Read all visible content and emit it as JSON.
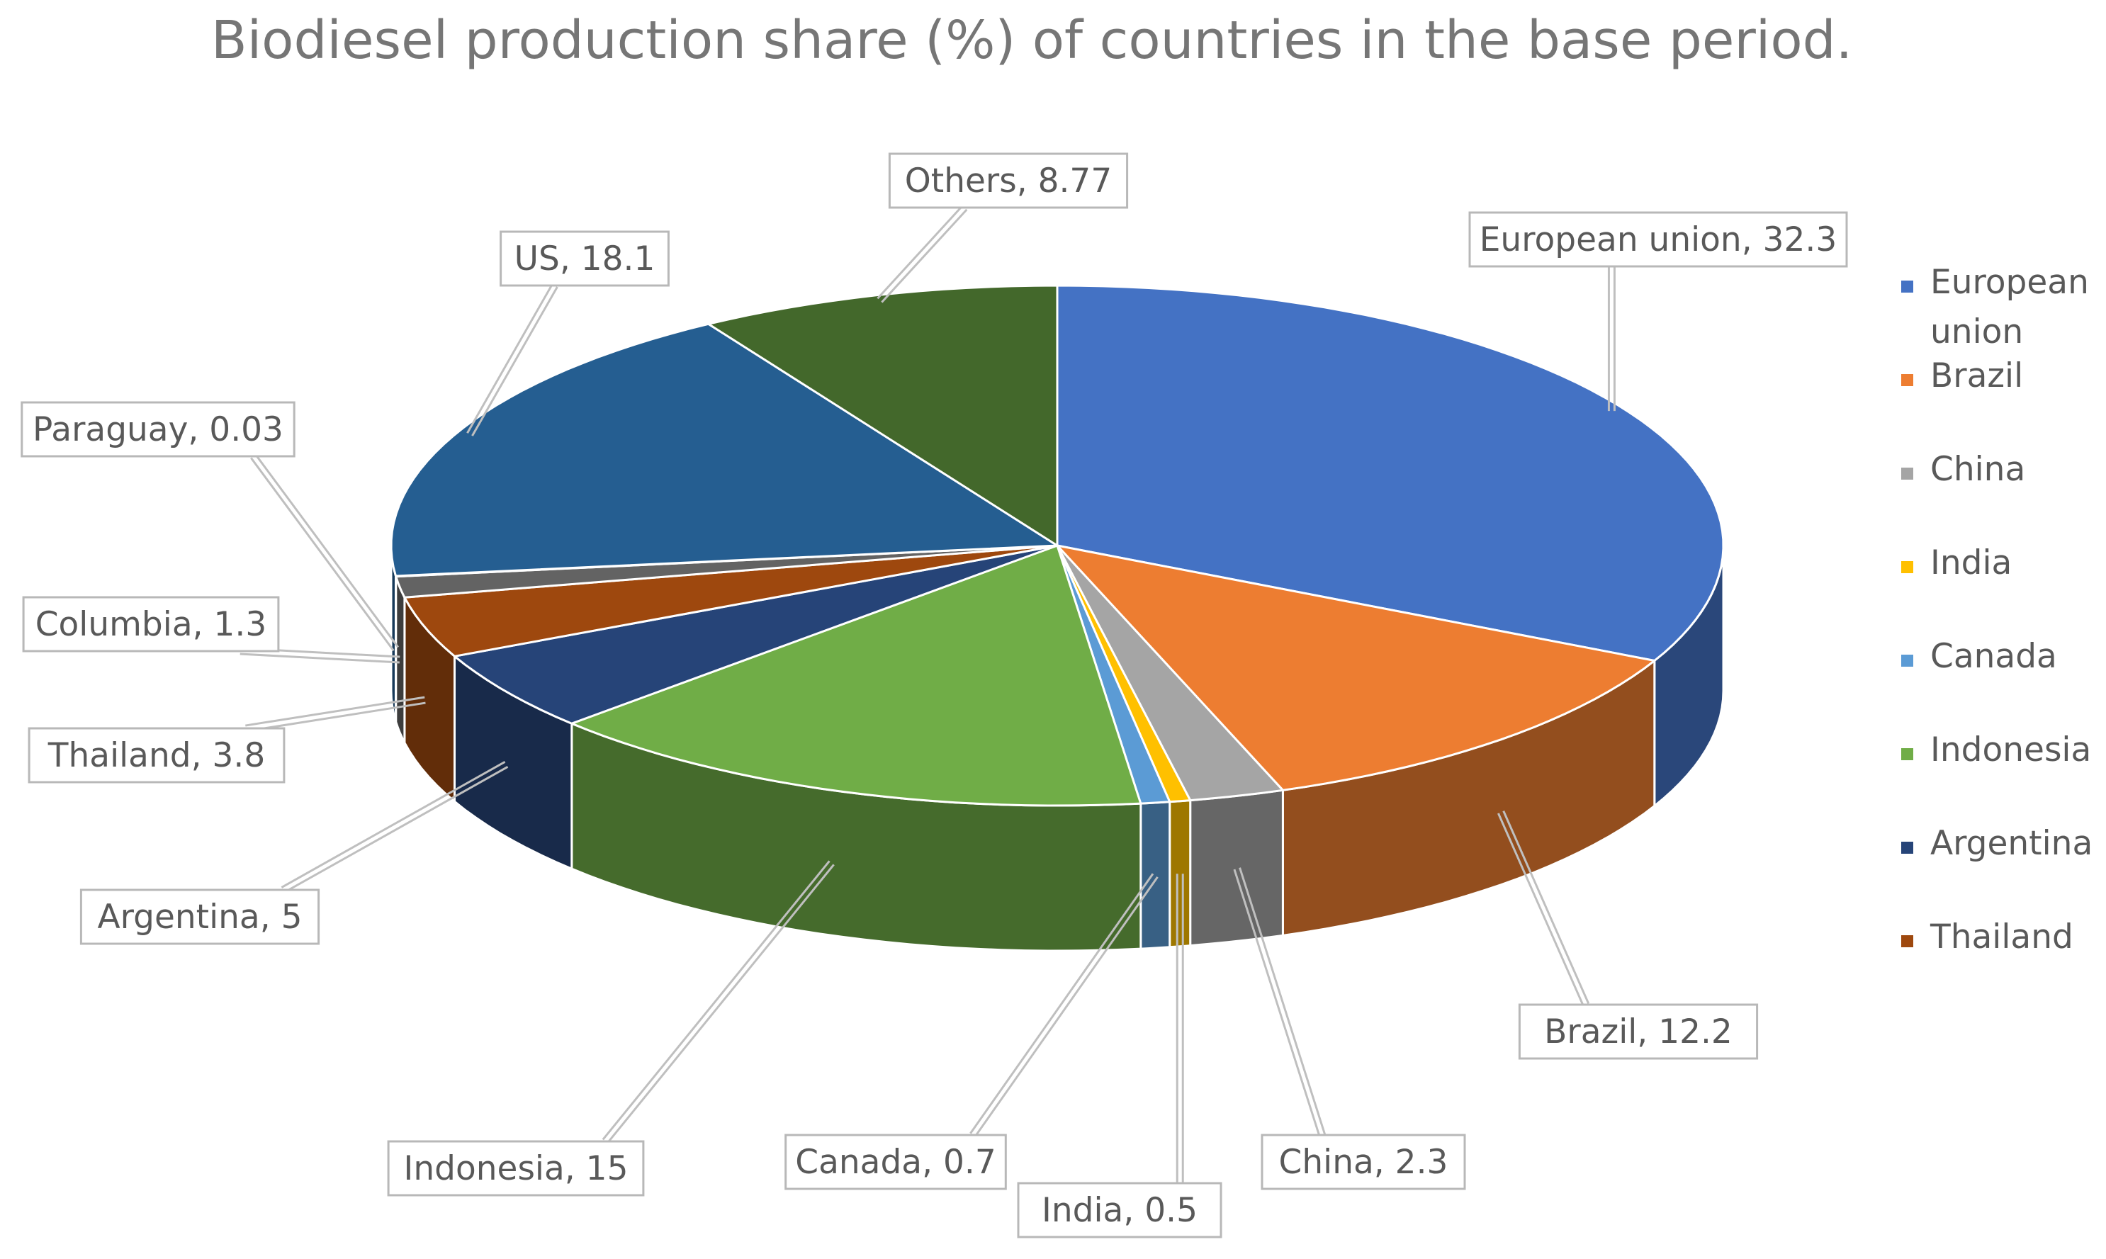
{
  "chart_data": {
    "type": "pie",
    "title": "Biodiesel production share (%) of countries in the base period.",
    "unit": "%",
    "slices": [
      {
        "label": "European union",
        "value": 32.3,
        "color": "#4472c4",
        "data_label": "European union, 32.3"
      },
      {
        "label": "Brazil",
        "value": 12.2,
        "color": "#ed7d31",
        "data_label": "Brazil, 12.2"
      },
      {
        "label": "China",
        "value": 2.3,
        "color": "#a5a5a5",
        "data_label": "China, 2.3"
      },
      {
        "label": "India",
        "value": 0.5,
        "color": "#ffc000",
        "data_label": "India, 0.5"
      },
      {
        "label": "Canada",
        "value": 0.7,
        "color": "#5b9bd5",
        "data_label": "Canada, 0.7"
      },
      {
        "label": "Indonesia",
        "value": 15,
        "color": "#70ad47",
        "data_label": "Indonesia, 15"
      },
      {
        "label": "Argentina",
        "value": 5,
        "color": "#264478",
        "data_label": "Argentina, 5"
      },
      {
        "label": "Thailand",
        "value": 3.8,
        "color": "#9e480e",
        "data_label": "Thailand, 3.8"
      },
      {
        "label": "Columbia",
        "value": 1.3,
        "color": "#636363",
        "data_label": "Columbia, 1.3"
      },
      {
        "label": "Paraguay",
        "value": 0.03,
        "color": "#997300",
        "data_label": "Paraguay, 0.03"
      },
      {
        "label": "US",
        "value": 18.1,
        "color": "#255e91",
        "data_label": "US, 18.1"
      },
      {
        "label": "Others",
        "value": 8.77,
        "color": "#43682b",
        "data_label": "Others, 8.77"
      }
    ],
    "legend": {
      "position": "right",
      "entries": [
        {
          "label": "European union",
          "color": "#4472c4"
        },
        {
          "label": "Brazil",
          "color": "#ed7d31"
        },
        {
          "label": "China",
          "color": "#a5a5a5"
        },
        {
          "label": "India",
          "color": "#ffc000"
        },
        {
          "label": "Canada",
          "color": "#5b9bd5"
        },
        {
          "label": "Indonesia",
          "color": "#70ad47"
        },
        {
          "label": "Argentina",
          "color": "#264478"
        },
        {
          "label": "Thailand",
          "color": "#9e480e"
        }
      ]
    }
  }
}
